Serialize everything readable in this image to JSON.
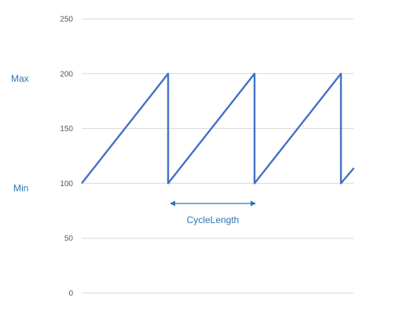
{
  "chart_data": {
    "type": "line",
    "title": "",
    "xlabel": "",
    "ylabel": "",
    "ylim": [
      0,
      250
    ],
    "yticks": [
      0,
      50,
      100,
      150,
      200,
      250
    ],
    "grid": true,
    "legend": "none",
    "x": [
      0,
      1.0,
      1.0,
      2.0,
      2.0,
      3.0,
      3.0,
      3.15
    ],
    "series": [
      {
        "values": [
          100,
          200,
          100,
          200,
          100,
          200,
          100,
          114
        ],
        "color": "#4472c4"
      }
    ],
    "annotations": {
      "max_label": "Max",
      "min_label": "Min",
      "cycle_label": "CycleLength",
      "max_value": 200,
      "min_value": 100,
      "cycle_span": [
        1.0,
        2.0
      ],
      "color": "#2e75b6"
    },
    "colors": {
      "grid": "#d9d9d9",
      "tick_text": "#595959"
    }
  }
}
